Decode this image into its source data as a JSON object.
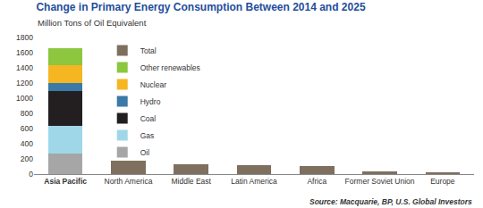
{
  "chart_data": {
    "type": "bar",
    "title": "Change in Primary Energy Consumption Between 2014 and 2025",
    "subtitle": "Million Tons of Oil Equivalent",
    "source": "Source: Macquarie, BP, U.S. Global Investors",
    "categories": [
      "Asia Pacific",
      "North America",
      "Middle East",
      "Latin America",
      "Africa",
      "Former Soviet Union",
      "Europe"
    ],
    "stacked": true,
    "series": [
      {
        "name": "Oil",
        "color": "#a6a6a6",
        "values": [
          270,
          null,
          null,
          null,
          null,
          null,
          null
        ]
      },
      {
        "name": "Gas",
        "color": "#9fd7e8",
        "values": [
          370,
          null,
          null,
          null,
          null,
          null,
          null
        ]
      },
      {
        "name": "Coal",
        "color": "#231f20",
        "values": [
          450,
          null,
          null,
          null,
          null,
          null,
          null
        ]
      },
      {
        "name": "Hydro",
        "color": "#3b7aa8",
        "values": [
          110,
          null,
          null,
          null,
          null,
          null,
          null
        ]
      },
      {
        "name": "Nuclear",
        "color": "#f6b622",
        "values": [
          240,
          null,
          null,
          null,
          null,
          null,
          null
        ]
      },
      {
        "name": "Other renewables",
        "color": "#8dc63f",
        "values": [
          220,
          null,
          null,
          null,
          null,
          null,
          null
        ]
      },
      {
        "name": "Total",
        "color": "#7f6f5f",
        "values": [
          null,
          175,
          135,
          120,
          105,
          30,
          20
        ]
      }
    ],
    "ylim": [
      0,
      1800
    ],
    "yticks": [
      0,
      200,
      400,
      600,
      800,
      1000,
      1200,
      1400,
      1600,
      1800
    ],
    "grid": false,
    "legend": "upper left"
  }
}
